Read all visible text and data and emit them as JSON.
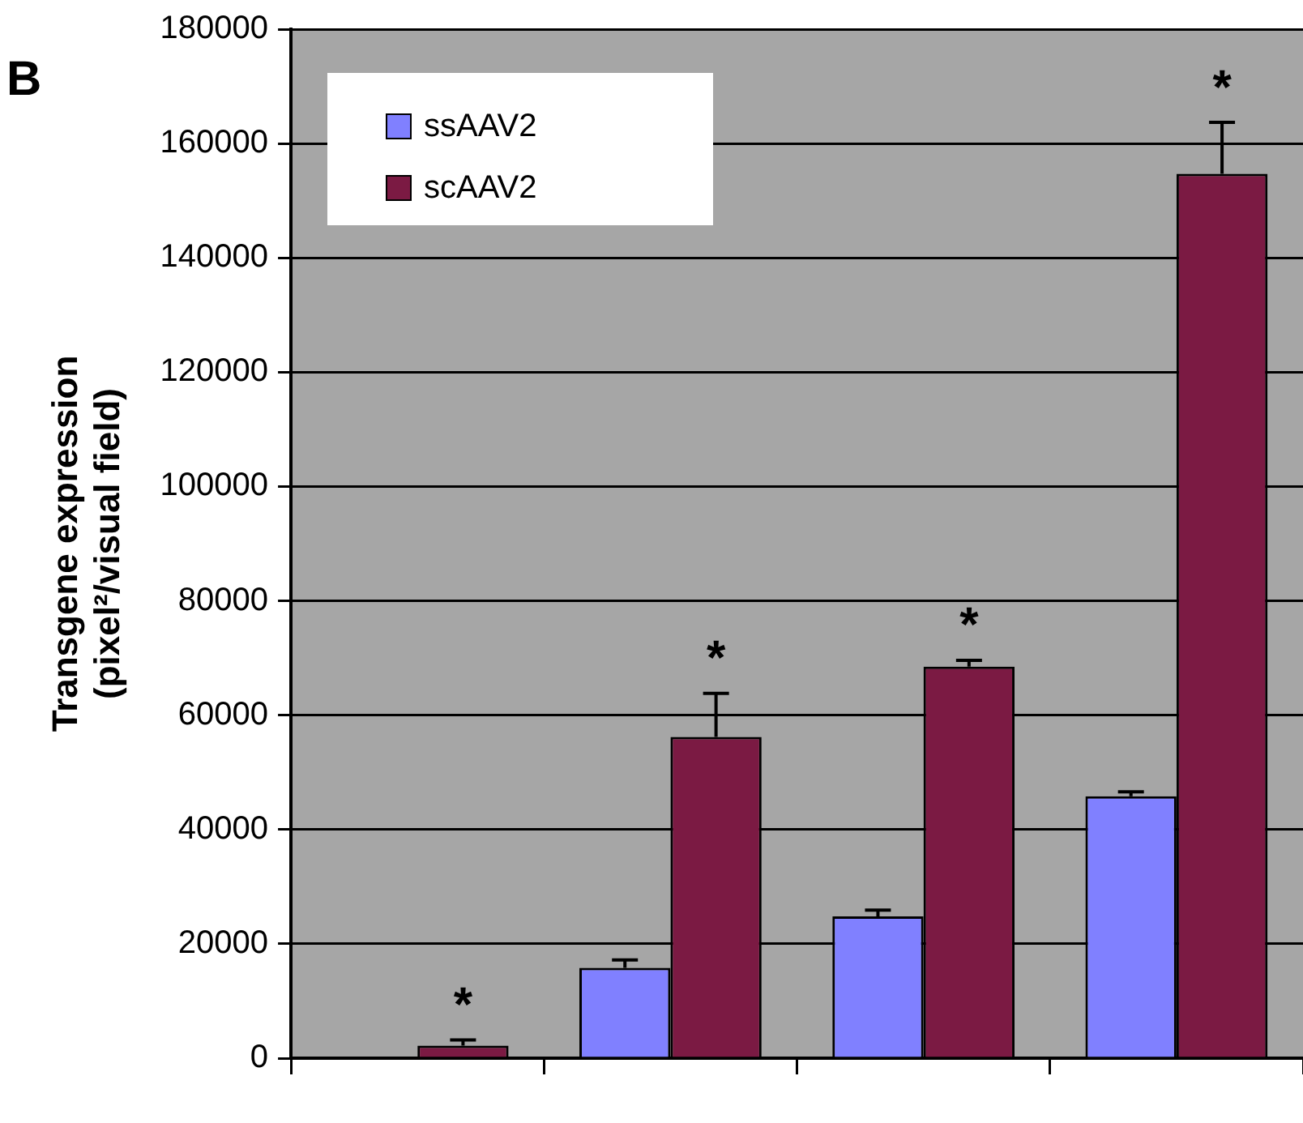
{
  "chart_data": {
    "type": "bar",
    "title": "B",
    "ylabel": "Transgene expression\n(pixel²/visual field)",
    "categories": [
      null,
      null,
      null,
      null
    ],
    "series": [
      {
        "name": "ssAAV2",
        "color": "#8080ff",
        "values": [
          0,
          15800,
          24800,
          45800
        ],
        "errors": [
          null,
          [
            15800,
            17200
          ],
          [
            24800,
            25900
          ],
          [
            45800,
            46600
          ]
        ]
      },
      {
        "name": "scAAV2",
        "color": "#7b1a43",
        "values": [
          2200,
          56200,
          68500,
          154700
        ],
        "errors": [
          [
            2200,
            3200
          ],
          [
            56200,
            63800
          ],
          [
            68500,
            69600
          ],
          [
            154700,
            163700
          ]
        ]
      }
    ],
    "ylim": [
      0,
      180000
    ],
    "yticks": [
      0,
      20000,
      40000,
      60000,
      80000,
      100000,
      120000,
      140000,
      160000,
      180000
    ],
    "grid": "y",
    "legend": "top left",
    "annotations": [
      "*",
      "*",
      "*",
      "*"
    ]
  }
}
